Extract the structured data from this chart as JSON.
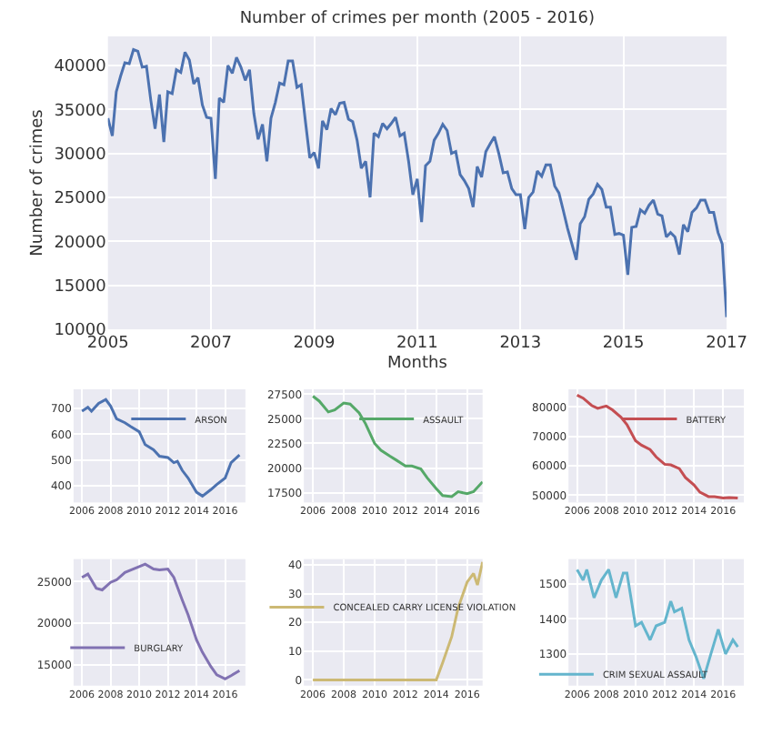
{
  "chart_data": [
    {
      "type": "line",
      "title": "Number of crimes per month (2005 - 2016)",
      "xlabel": "Months",
      "ylabel": "Number of crimes",
      "grid": true,
      "legend": false,
      "x": [
        "2005-01",
        "2005-02",
        "2005-03",
        "2005-04",
        "2005-05",
        "2005-06",
        "2005-07",
        "2005-08",
        "2005-09",
        "2005-10",
        "2005-11",
        "2005-12",
        "2006-01",
        "2006-02",
        "2006-03",
        "2006-04",
        "2006-05",
        "2006-06",
        "2006-07",
        "2006-08",
        "2006-09",
        "2006-10",
        "2006-11",
        "2006-12",
        "2007-01",
        "2007-02",
        "2007-03",
        "2007-04",
        "2007-05",
        "2007-06",
        "2007-07",
        "2007-08",
        "2007-09",
        "2007-10",
        "2007-11",
        "2007-12",
        "2008-01",
        "2008-02",
        "2008-03",
        "2008-04",
        "2008-05",
        "2008-06",
        "2008-07",
        "2008-08",
        "2008-09",
        "2008-10",
        "2008-11",
        "2008-12",
        "2009-01",
        "2009-02",
        "2009-03",
        "2009-04",
        "2009-05",
        "2009-06",
        "2009-07",
        "2009-08",
        "2009-09",
        "2009-10",
        "2009-11",
        "2009-12",
        "2010-01",
        "2010-02",
        "2010-03",
        "2010-04",
        "2010-05",
        "2010-06",
        "2010-07",
        "2010-08",
        "2010-09",
        "2010-10",
        "2010-11",
        "2010-12",
        "2011-01",
        "2011-02",
        "2011-03",
        "2011-04",
        "2011-05",
        "2011-06",
        "2011-07",
        "2011-08",
        "2011-09",
        "2011-10",
        "2011-11",
        "2011-12",
        "2012-01",
        "2012-02",
        "2012-03",
        "2012-04",
        "2012-05",
        "2012-06",
        "2012-07",
        "2012-08",
        "2012-09",
        "2012-10",
        "2012-11",
        "2012-12",
        "2013-01",
        "2013-02",
        "2013-03",
        "2013-04",
        "2013-05",
        "2013-06",
        "2013-07",
        "2013-08",
        "2013-09",
        "2013-10",
        "2013-11",
        "2013-12",
        "2014-01",
        "2014-02",
        "2014-03",
        "2014-04",
        "2014-05",
        "2014-06",
        "2014-07",
        "2014-08",
        "2014-09",
        "2014-10",
        "2014-11",
        "2014-12",
        "2015-01",
        "2015-02",
        "2015-03",
        "2015-04",
        "2015-05",
        "2015-06",
        "2015-07",
        "2015-08",
        "2015-09",
        "2015-10",
        "2015-11",
        "2015-12",
        "2016-01",
        "2016-02",
        "2016-03",
        "2016-04",
        "2016-05",
        "2016-06",
        "2016-07",
        "2016-08",
        "2016-09",
        "2016-10",
        "2016-11",
        "2016-12",
        "2017-01"
      ],
      "series": [
        {
          "color": "#4c72b0",
          "values": [
            34000,
            32000,
            37000,
            38800,
            40300,
            40200,
            41800,
            41600,
            39800,
            39900,
            36000,
            32800,
            36700,
            31300,
            37000,
            36800,
            39500,
            39200,
            41500,
            40600,
            37900,
            38600,
            35500,
            34100,
            34000,
            27100,
            36300,
            35800,
            40000,
            39100,
            40900,
            39800,
            38300,
            39500,
            34500,
            31600,
            33300,
            29100,
            34000,
            35800,
            38000,
            37800,
            40500,
            40500,
            37500,
            37800,
            33500,
            29500,
            30100,
            28300,
            33700,
            32700,
            35100,
            34400,
            35700,
            35800,
            33900,
            33600,
            31500,
            28300,
            29100,
            25000,
            32300,
            31900,
            33400,
            32800,
            33400,
            34100,
            32000,
            32300,
            29100,
            25300,
            27100,
            22200,
            28600,
            29100,
            31500,
            32300,
            33300,
            32600,
            30000,
            30200,
            27600,
            26900,
            26000,
            23900,
            28500,
            27300,
            30200,
            31100,
            31900,
            30000,
            27800,
            27900,
            26000,
            25300,
            25300,
            21400,
            25000,
            25600,
            28000,
            27400,
            28700,
            28700,
            26300,
            25500,
            23500,
            21500,
            19700,
            17900,
            22000,
            22800,
            24800,
            25400,
            26500,
            25900,
            23900,
            23900,
            20800,
            20900,
            20700,
            16200,
            21600,
            21700,
            23600,
            23200,
            24100,
            24700,
            23100,
            22900,
            20500,
            21000,
            20500,
            18500,
            21900,
            21100,
            23300,
            23800,
            24700,
            24700,
            23300,
            23300,
            21000,
            19700,
            11400
          ]
        }
      ],
      "xlim": [
        "2005-01",
        "2017-01"
      ],
      "ylim": [
        10000,
        43300
      ],
      "xticks": [
        {
          "value": "2005",
          "label": "2005"
        },
        {
          "value": "2007",
          "label": "2007"
        },
        {
          "value": "2009",
          "label": "2009"
        },
        {
          "value": "2011",
          "label": "2011"
        },
        {
          "value": "2013",
          "label": "2013"
        },
        {
          "value": "2015",
          "label": "2015"
        },
        {
          "value": "2017",
          "label": "2017"
        }
      ],
      "yticks": [
        10000,
        15000,
        20000,
        25000,
        30000,
        35000,
        40000
      ]
    },
    {
      "type": "line",
      "grid": true,
      "legend": "top right",
      "x": [
        "2006-01",
        "2006-06",
        "2006-09",
        "2007-03",
        "2007-09",
        "2008-01",
        "2008-06",
        "2009-01",
        "2009-06",
        "2010-01",
        "2010-06",
        "2011-01",
        "2011-06",
        "2012-01",
        "2012-06",
        "2012-09",
        "2013-01",
        "2013-06",
        "2014-01",
        "2014-06",
        "2015-01",
        "2015-06",
        "2016-01",
        "2016-06",
        "2017-01"
      ],
      "series": [
        {
          "name": "ARSON",
          "color": "#4c72b0",
          "values": [
            690,
            705,
            690,
            720,
            735,
            710,
            660,
            645,
            630,
            610,
            560,
            540,
            515,
            510,
            490,
            495,
            460,
            430,
            375,
            360,
            385,
            405,
            430,
            490,
            520
          ]
        }
      ],
      "xlim": [
        "2005-06",
        "2017-06"
      ],
      "ylim": [
        335,
        775
      ],
      "xticks": [
        {
          "value": "2006",
          "label": "2006"
        },
        {
          "value": "2008",
          "label": "2008"
        },
        {
          "value": "2010",
          "label": "2010"
        },
        {
          "value": "2012",
          "label": "2012"
        },
        {
          "value": "2014",
          "label": "2014"
        },
        {
          "value": "2016",
          "label": "2016"
        }
      ],
      "yticks": [
        400,
        500,
        600,
        700
      ]
    },
    {
      "type": "line",
      "grid": true,
      "legend": "top right",
      "x": [
        "2006-01",
        "2006-06",
        "2007-01",
        "2007-06",
        "2008-01",
        "2008-06",
        "2009-01",
        "2009-06",
        "2010-01",
        "2010-06",
        "2011-01",
        "2011-06",
        "2012-01",
        "2012-06",
        "2013-01",
        "2013-06",
        "2014-01",
        "2014-06",
        "2015-01",
        "2015-06",
        "2016-01",
        "2016-06",
        "2017-01"
      ],
      "series": [
        {
          "name": "ASSAULT",
          "color": "#55a868",
          "values": [
            27300,
            26800,
            25700,
            25900,
            26600,
            26500,
            25600,
            24500,
            22500,
            21800,
            21200,
            20800,
            20200,
            20200,
            19900,
            19000,
            17900,
            17200,
            17100,
            17600,
            17400,
            17600,
            18600
          ]
        }
      ],
      "xlim": [
        "2005-06",
        "2017-01"
      ],
      "ylim": [
        16500,
        28000
      ],
      "xticks": [
        {
          "value": "2006",
          "label": "2006"
        },
        {
          "value": "2008",
          "label": "2008"
        },
        {
          "value": "2010",
          "label": "2010"
        },
        {
          "value": "2012",
          "label": "2012"
        },
        {
          "value": "2014",
          "label": "2014"
        },
        {
          "value": "2016",
          "label": "2016"
        }
      ],
      "yticks": [
        17500,
        20000,
        22500,
        25000,
        27500
      ]
    },
    {
      "type": "line",
      "grid": true,
      "legend": "top right",
      "x": [
        "2006-01",
        "2006-06",
        "2007-01",
        "2007-06",
        "2008-01",
        "2008-06",
        "2009-01",
        "2009-06",
        "2010-01",
        "2010-06",
        "2011-01",
        "2011-06",
        "2012-01",
        "2012-06",
        "2013-01",
        "2013-06",
        "2014-01",
        "2014-06",
        "2015-01",
        "2015-06",
        "2016-01",
        "2016-06",
        "2017-01"
      ],
      "series": [
        {
          "name": "BATTERY",
          "color": "#c44e52",
          "values": [
            84000,
            83000,
            80500,
            79500,
            80300,
            79000,
            76500,
            74000,
            68500,
            67000,
            65500,
            63000,
            60500,
            60300,
            59000,
            56000,
            53500,
            51000,
            49500,
            49500,
            49000,
            49200,
            49000
          ]
        }
      ],
      "xlim": [
        "2005-06",
        "2017-06"
      ],
      "ylim": [
        47500,
        86000
      ],
      "xticks": [
        {
          "value": "2006",
          "label": "2006"
        },
        {
          "value": "2008",
          "label": "2008"
        },
        {
          "value": "2010",
          "label": "2010"
        },
        {
          "value": "2012",
          "label": "2012"
        },
        {
          "value": "2014",
          "label": "2014"
        },
        {
          "value": "2016",
          "label": "2016"
        }
      ],
      "yticks": [
        50000,
        60000,
        70000,
        80000
      ]
    },
    {
      "type": "line",
      "grid": true,
      "legend": "bottom left",
      "x": [
        "2006-01",
        "2006-06",
        "2007-01",
        "2007-06",
        "2008-01",
        "2008-06",
        "2009-01",
        "2009-06",
        "2010-01",
        "2010-06",
        "2011-01",
        "2011-06",
        "2012-01",
        "2012-06",
        "2013-01",
        "2013-06",
        "2014-01",
        "2014-06",
        "2015-01",
        "2015-06",
        "2016-01",
        "2016-06",
        "2017-01"
      ],
      "series": [
        {
          "name": "BURGLARY",
          "color": "#8172b2",
          "values": [
            25500,
            25900,
            24200,
            24000,
            24900,
            25200,
            26100,
            26400,
            26800,
            27100,
            26500,
            26400,
            26500,
            25500,
            22800,
            21000,
            18000,
            16500,
            14800,
            13800,
            13300,
            13700,
            14300
          ]
        }
      ],
      "xlim": [
        "2005-06",
        "2017-06"
      ],
      "ylim": [
        12500,
        27700
      ],
      "xticks": [
        {
          "value": "2006",
          "label": "2006"
        },
        {
          "value": "2008",
          "label": "2008"
        },
        {
          "value": "2010",
          "label": "2010"
        },
        {
          "value": "2012",
          "label": "2012"
        },
        {
          "value": "2014",
          "label": "2014"
        },
        {
          "value": "2016",
          "label": "2016"
        }
      ],
      "yticks": [
        15000,
        20000,
        25000
      ]
    },
    {
      "type": "line",
      "grid": true,
      "legend": "center",
      "x": [
        "2006-01",
        "2014-01",
        "2014-06",
        "2015-01",
        "2015-06",
        "2016-01",
        "2016-06",
        "2016-09",
        "2017-01"
      ],
      "series": [
        {
          "name": "CONCEALED CARRY LICENSE VIOLATION",
          "color": "#ccb974",
          "values": [
            0,
            0,
            6,
            15,
            25,
            34,
            37,
            33,
            41
          ]
        }
      ],
      "xlim": [
        "2005-06",
        "2017-01"
      ],
      "ylim": [
        -2,
        42
      ],
      "xticks": [
        {
          "value": "2006",
          "label": "2006"
        },
        {
          "value": "2008",
          "label": "2008"
        },
        {
          "value": "2010",
          "label": "2010"
        },
        {
          "value": "2012",
          "label": "2012"
        },
        {
          "value": "2014",
          "label": "2014"
        },
        {
          "value": "2016",
          "label": "2016"
        }
      ],
      "yticks": [
        0,
        10,
        20,
        30,
        40
      ]
    },
    {
      "type": "line",
      "grid": true,
      "legend": "bottom left",
      "x": [
        "2006-01",
        "2006-06",
        "2006-09",
        "2007-03",
        "2007-09",
        "2008-03",
        "2008-09",
        "2009-03",
        "2009-06",
        "2010-01",
        "2010-06",
        "2011-01",
        "2011-06",
        "2012-01",
        "2012-06",
        "2012-09",
        "2013-03",
        "2013-09",
        "2014-03",
        "2014-09",
        "2015-03",
        "2015-09",
        "2016-03",
        "2016-09",
        "2017-01"
      ],
      "series": [
        {
          "name": "CRIM SEXUAL ASSAULT",
          "color": "#64b5cd",
          "values": [
            1540,
            1510,
            1540,
            1460,
            1510,
            1540,
            1460,
            1530,
            1530,
            1380,
            1390,
            1340,
            1380,
            1390,
            1450,
            1420,
            1430,
            1340,
            1290,
            1230,
            1300,
            1370,
            1300,
            1340,
            1320
          ]
        }
      ],
      "xlim": [
        "2005-06",
        "2017-06"
      ],
      "ylim": [
        1210,
        1570
      ],
      "xticks": [
        {
          "value": "2006",
          "label": "2006"
        },
        {
          "value": "2008",
          "label": "2008"
        },
        {
          "value": "2010",
          "label": "2010"
        },
        {
          "value": "2012",
          "label": "2012"
        },
        {
          "value": "2014",
          "label": "2014"
        },
        {
          "value": "2016",
          "label": "2016"
        }
      ],
      "yticks": [
        1300,
        1400,
        1500
      ]
    }
  ]
}
